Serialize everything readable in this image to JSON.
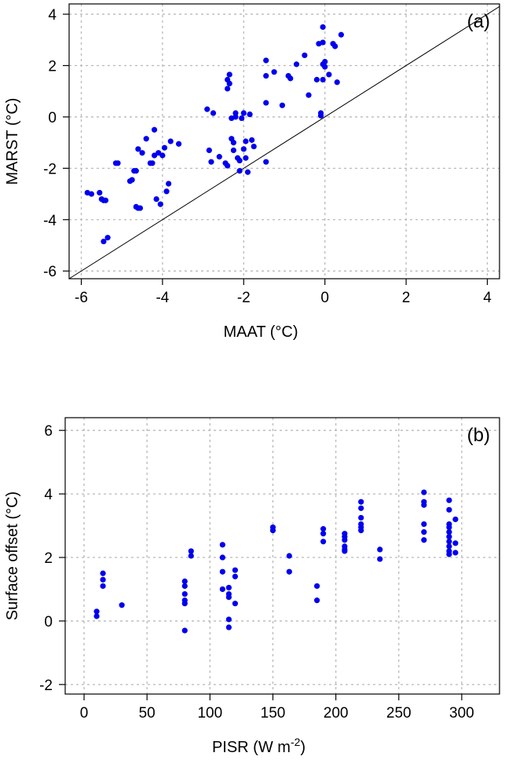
{
  "chart_data": [
    {
      "type": "scatter",
      "panel_label": "(a)",
      "xlabel": "MAAT (°C)",
      "ylabel": "MARST (°C)",
      "xlim": [
        -6.3,
        4.3
      ],
      "ylim": [
        -6.3,
        4.4
      ],
      "xticks": [
        -6,
        -4,
        -2,
        0,
        2,
        4
      ],
      "yticks": [
        -6,
        -4,
        -2,
        0,
        2,
        4
      ],
      "xtick_labels": [
        "-6",
        "-4",
        "-2",
        "0",
        "2",
        "4"
      ],
      "ytick_labels": [
        "-6",
        "-4",
        "-2",
        "0",
        "2",
        "4"
      ],
      "grid": true,
      "reference_line": "1:1",
      "point_color": "#0000ee",
      "points": [
        [
          -5.85,
          -2.95
        ],
        [
          -5.75,
          -3.0
        ],
        [
          -5.55,
          -2.95
        ],
        [
          -5.5,
          -3.2
        ],
        [
          -5.45,
          -3.25
        ],
        [
          -5.4,
          -3.25
        ],
        [
          -5.45,
          -4.85
        ],
        [
          -5.35,
          -4.7
        ],
        [
          -5.15,
          -1.8
        ],
        [
          -5.1,
          -1.8
        ],
        [
          -4.8,
          -2.5
        ],
        [
          -4.75,
          -2.45
        ],
        [
          -4.7,
          -2.1
        ],
        [
          -4.65,
          -2.1
        ],
        [
          -4.65,
          -3.5
        ],
        [
          -4.6,
          -3.55
        ],
        [
          -4.55,
          -3.55
        ],
        [
          -4.6,
          -1.25
        ],
        [
          -4.5,
          -1.4
        ],
        [
          -4.4,
          -0.85
        ],
        [
          -4.3,
          -1.8
        ],
        [
          -4.25,
          -1.8
        ],
        [
          -4.2,
          -1.5
        ],
        [
          -4.2,
          -0.5
        ],
        [
          -4.15,
          -3.2
        ],
        [
          -4.1,
          -1.4
        ],
        [
          -4.05,
          -3.4
        ],
        [
          -4.0,
          -1.5
        ],
        [
          -3.95,
          -1.2
        ],
        [
          -3.9,
          -2.9
        ],
        [
          -3.85,
          -2.6
        ],
        [
          -3.8,
          -0.95
        ],
        [
          -3.6,
          -1.05
        ],
        [
          -2.9,
          0.3
        ],
        [
          -2.85,
          -1.3
        ],
        [
          -2.8,
          -1.75
        ],
        [
          -2.75,
          0.15
        ],
        [
          -2.6,
          -1.55
        ],
        [
          -2.45,
          -1.8
        ],
        [
          -2.4,
          -1.9
        ],
        [
          -2.4,
          1.45
        ],
        [
          -2.35,
          1.3
        ],
        [
          -2.35,
          1.65
        ],
        [
          -2.4,
          1.1
        ],
        [
          -2.3,
          -0.05
        ],
        [
          -2.3,
          -0.85
        ],
        [
          -2.25,
          -1.0
        ],
        [
          -2.25,
          -1.3
        ],
        [
          -2.2,
          0.15
        ],
        [
          -2.2,
          0.0
        ],
        [
          -2.15,
          -1.6
        ],
        [
          -2.1,
          -1.7
        ],
        [
          -2.1,
          -2.1
        ],
        [
          -2.05,
          -0.05
        ],
        [
          -2.0,
          0.15
        ],
        [
          -2.0,
          -1.25
        ],
        [
          -1.95,
          -1.6
        ],
        [
          -1.95,
          -0.95
        ],
        [
          -1.9,
          -2.15
        ],
        [
          -1.85,
          0.1
        ],
        [
          -1.8,
          -0.9
        ],
        [
          -1.75,
          -1.15
        ],
        [
          -1.45,
          2.2
        ],
        [
          -1.45,
          1.6
        ],
        [
          -1.45,
          0.55
        ],
        [
          -1.45,
          -1.75
        ],
        [
          -1.25,
          1.75
        ],
        [
          -1.05,
          0.45
        ],
        [
          -0.9,
          1.6
        ],
        [
          -0.85,
          1.5
        ],
        [
          -0.7,
          2.05
        ],
        [
          -0.5,
          2.4
        ],
        [
          -0.4,
          0.85
        ],
        [
          -0.2,
          1.45
        ],
        [
          -0.15,
          2.85
        ],
        [
          -0.1,
          0.15
        ],
        [
          -0.1,
          0.05
        ],
        [
          -0.05,
          3.5
        ],
        [
          -0.05,
          2.9
        ],
        [
          -0.05,
          2.05
        ],
        [
          -0.05,
          1.45
        ],
        [
          0.0,
          2.15
        ],
        [
          0.0,
          1.95
        ],
        [
          0.1,
          1.65
        ],
        [
          0.2,
          2.85
        ],
        [
          0.25,
          2.75
        ],
        [
          0.3,
          1.35
        ],
        [
          0.4,
          3.2
        ]
      ]
    },
    {
      "type": "scatter",
      "panel_label": "(b)",
      "xlabel": "PISR (W m",
      "xlabel_sup": "-2",
      "xlabel_close": ")",
      "ylabel": "Surface offset (°C)",
      "xlim": [
        -15,
        330
      ],
      "ylim": [
        -2.3,
        6.4
      ],
      "xticks": [
        0,
        50,
        100,
        150,
        200,
        250,
        300
      ],
      "yticks": [
        -2,
        0,
        2,
        4,
        6
      ],
      "xtick_labels": [
        "0",
        "50",
        "100",
        "150",
        "200",
        "250",
        "300"
      ],
      "ytick_labels": [
        "-2",
        "0",
        "2",
        "4",
        "6"
      ],
      "grid": true,
      "point_color": "#0000ee",
      "points": [
        [
          10,
          0.3
        ],
        [
          10,
          0.15
        ],
        [
          15,
          1.5
        ],
        [
          15,
          1.3
        ],
        [
          15,
          1.1
        ],
        [
          30,
          0.5
        ],
        [
          80,
          1.25
        ],
        [
          80,
          1.1
        ],
        [
          80,
          0.85
        ],
        [
          80,
          0.65
        ],
        [
          80,
          0.55
        ],
        [
          80,
          -0.3
        ],
        [
          85,
          2.2
        ],
        [
          85,
          2.05
        ],
        [
          110,
          2.4
        ],
        [
          110,
          2.0
        ],
        [
          110,
          1.55
        ],
        [
          110,
          1.0
        ],
        [
          115,
          1.05
        ],
        [
          115,
          0.85
        ],
        [
          115,
          0.75
        ],
        [
          115,
          0.05
        ],
        [
          115,
          -0.2
        ],
        [
          120,
          1.6
        ],
        [
          120,
          1.4
        ],
        [
          120,
          0.55
        ],
        [
          150,
          2.95
        ],
        [
          150,
          2.85
        ],
        [
          163,
          2.05
        ],
        [
          163,
          1.55
        ],
        [
          185,
          1.1
        ],
        [
          185,
          0.65
        ],
        [
          190,
          2.9
        ],
        [
          190,
          2.75
        ],
        [
          190,
          2.5
        ],
        [
          207,
          2.75
        ],
        [
          207,
          2.65
        ],
        [
          207,
          2.55
        ],
        [
          207,
          2.35
        ],
        [
          207,
          2.25
        ],
        [
          207,
          2.2
        ],
        [
          220,
          3.75
        ],
        [
          220,
          3.55
        ],
        [
          220,
          3.25
        ],
        [
          220,
          3.05
        ],
        [
          220,
          2.95
        ],
        [
          220,
          2.85
        ],
        [
          235,
          2.25
        ],
        [
          235,
          1.95
        ],
        [
          270,
          4.05
        ],
        [
          270,
          3.75
        ],
        [
          270,
          3.65
        ],
        [
          270,
          3.05
        ],
        [
          270,
          2.8
        ],
        [
          270,
          2.55
        ],
        [
          290,
          3.8
        ],
        [
          290,
          3.5
        ],
        [
          290,
          3.05
        ],
        [
          290,
          2.95
        ],
        [
          290,
          2.8
        ],
        [
          290,
          2.65
        ],
        [
          290,
          2.5
        ],
        [
          290,
          2.35
        ],
        [
          290,
          2.2
        ],
        [
          290,
          2.1
        ],
        [
          295,
          3.2
        ],
        [
          295,
          2.45
        ],
        [
          295,
          2.15
        ]
      ]
    }
  ]
}
